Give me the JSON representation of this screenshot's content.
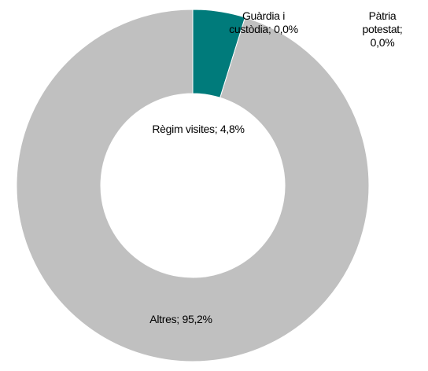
{
  "chart_data": {
    "type": "donut",
    "categories": [
      "Règim visites",
      "Guàrdia i custòdia",
      "Pàtria potestat",
      "Altres"
    ],
    "values": [
      4.8,
      0.0,
      0.0,
      95.2
    ],
    "value_labels": [
      "4,8%",
      "0,0%",
      "0,0%",
      "95,2%"
    ],
    "label_separator": ";",
    "colors": [
      "#007b7b",
      "#c8a000",
      "#4a6fa5",
      "#c0c0c0"
    ]
  }
}
